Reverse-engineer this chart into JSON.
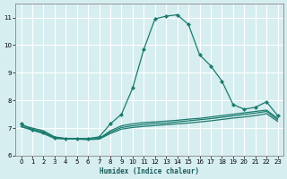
{
  "xlabel": "Humidex (Indice chaleur)",
  "bg_color": "#d6eef0",
  "grid_color": "#ffffff",
  "line_color": "#1a7a6e",
  "xlim": [
    -0.5,
    23.5
  ],
  "ylim": [
    6.0,
    11.5
  ],
  "yticks": [
    6,
    7,
    8,
    9,
    10,
    11
  ],
  "xticks": [
    0,
    1,
    2,
    3,
    4,
    5,
    6,
    7,
    8,
    9,
    10,
    11,
    12,
    13,
    14,
    15,
    16,
    17,
    18,
    19,
    20,
    21,
    22,
    23
  ],
  "line1_x": [
    0,
    1,
    2,
    3,
    4,
    5,
    6,
    7,
    8,
    9,
    10,
    11,
    12,
    13,
    14,
    15,
    16,
    17,
    18,
    19,
    20,
    21,
    22,
    23
  ],
  "line1_y": [
    7.15,
    6.95,
    6.85,
    6.65,
    6.62,
    6.62,
    6.62,
    6.68,
    7.15,
    7.5,
    8.45,
    9.85,
    10.95,
    11.05,
    11.1,
    10.75,
    9.65,
    9.25,
    8.7,
    7.85,
    7.68,
    7.75,
    7.95,
    7.45
  ],
  "line2_x": [
    0,
    1,
    2,
    3,
    4,
    5,
    6,
    7,
    8,
    9,
    10,
    11,
    12,
    13,
    14,
    15,
    16,
    17,
    18,
    19,
    20,
    21,
    22,
    23
  ],
  "line2_y": [
    7.1,
    7.0,
    6.9,
    6.68,
    6.62,
    6.62,
    6.6,
    6.62,
    6.9,
    7.08,
    7.15,
    7.2,
    7.22,
    7.25,
    7.28,
    7.32,
    7.35,
    7.4,
    7.45,
    7.5,
    7.55,
    7.6,
    7.65,
    7.35
  ],
  "line3_x": [
    0,
    1,
    2,
    3,
    4,
    5,
    6,
    7,
    8,
    9,
    10,
    11,
    12,
    13,
    14,
    15,
    16,
    17,
    18,
    19,
    20,
    21,
    22,
    23
  ],
  "line3_y": [
    7.05,
    6.95,
    6.85,
    6.65,
    6.62,
    6.62,
    6.6,
    6.62,
    6.85,
    7.02,
    7.08,
    7.13,
    7.16,
    7.18,
    7.22,
    7.26,
    7.3,
    7.34,
    7.39,
    7.44,
    7.49,
    7.54,
    7.6,
    7.3
  ],
  "line4_x": [
    0,
    1,
    2,
    3,
    4,
    5,
    6,
    7,
    8,
    9,
    10,
    11,
    12,
    13,
    14,
    15,
    16,
    17,
    18,
    19,
    20,
    21,
    22,
    23
  ],
  "line4_y": [
    7.05,
    6.92,
    6.8,
    6.62,
    6.6,
    6.6,
    6.58,
    6.6,
    6.8,
    6.96,
    7.02,
    7.06,
    7.09,
    7.12,
    7.15,
    7.18,
    7.22,
    7.26,
    7.31,
    7.36,
    7.4,
    7.45,
    7.52,
    7.24
  ]
}
